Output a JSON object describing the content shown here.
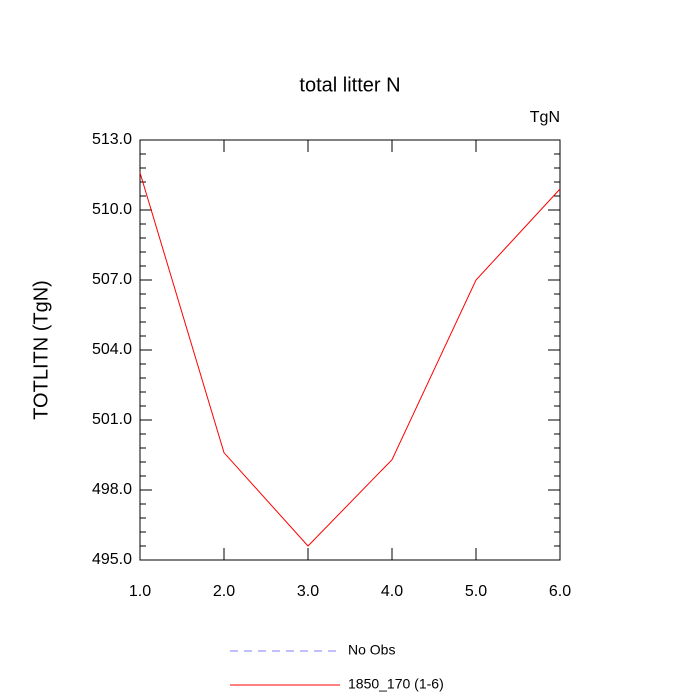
{
  "chart_data": {
    "type": "line",
    "title": "total litter N",
    "unit_label": "TgN",
    "ylabel": "TOTLITN  (TgN)",
    "x": [
      1,
      2,
      3,
      4,
      5,
      6
    ],
    "series": [
      {
        "name": "No Obs",
        "color": "#8080ff",
        "dashed": true,
        "values": [
          null,
          null,
          null,
          null,
          null,
          null
        ]
      },
      {
        "name": "1850_170 (1-6)",
        "color": "#ff0000",
        "dashed": false,
        "values": [
          511.6,
          499.6,
          495.6,
          499.3,
          507.0,
          510.9
        ]
      }
    ],
    "xlim": [
      1,
      6
    ],
    "xticks": [
      {
        "value": 1,
        "label": "1.0"
      },
      {
        "value": 2,
        "label": "2.0"
      },
      {
        "value": 3,
        "label": "3.0"
      },
      {
        "value": 4,
        "label": "4.0"
      },
      {
        "value": 5,
        "label": "5.0"
      },
      {
        "value": 6,
        "label": "6.0"
      }
    ],
    "ylim": [
      495,
      513
    ],
    "yticks": [
      {
        "value": 495,
        "label": "495.0"
      },
      {
        "value": 498,
        "label": "498.0"
      },
      {
        "value": 501,
        "label": "501.0"
      },
      {
        "value": 504,
        "label": "504.0"
      },
      {
        "value": 507,
        "label": "507.0"
      },
      {
        "value": 510,
        "label": "510.0"
      },
      {
        "value": 513,
        "label": "513.0"
      }
    ]
  }
}
